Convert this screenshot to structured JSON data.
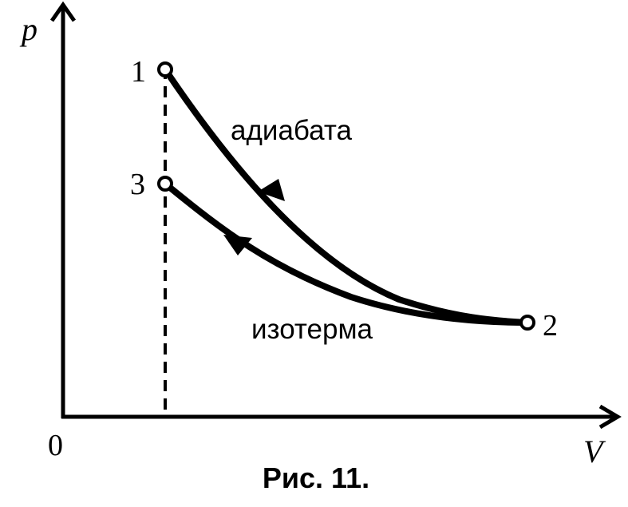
{
  "axes": {
    "y_label": "p",
    "x_label": "V",
    "origin_label": "0"
  },
  "points": {
    "p1": "1",
    "p2": "2",
    "p3": "3"
  },
  "curves": {
    "adiabat_label": "адиабата",
    "isotherm_label": "изотерма"
  },
  "caption": "Рис. 11.",
  "colors": {
    "ink": "#000000",
    "background": "#ffffff"
  }
}
